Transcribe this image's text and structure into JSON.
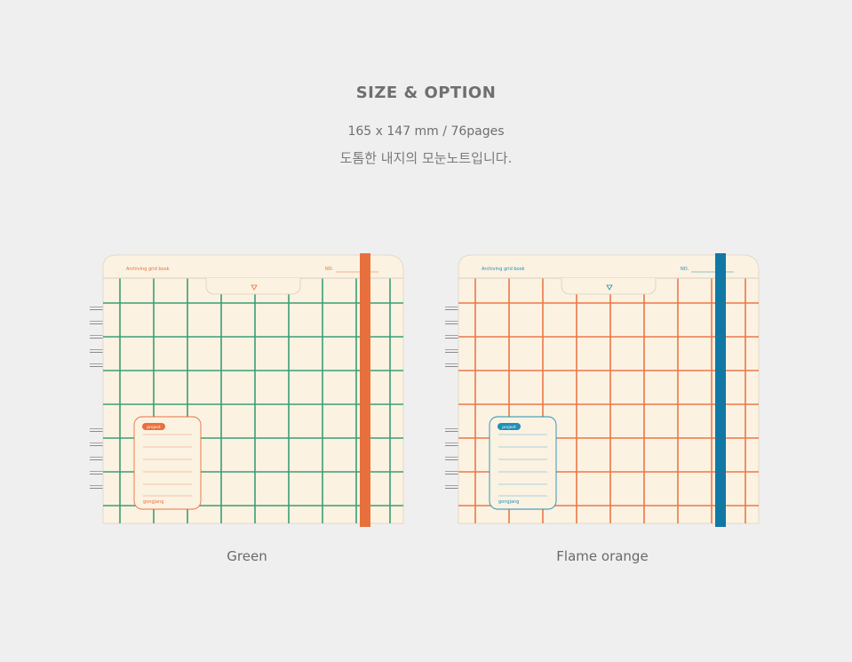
{
  "header": {
    "title": "SIZE & OPTION",
    "spec": "165 x 147 mm / 76pages",
    "description": "도톰한 내지의 모눈노트입니다."
  },
  "notebooks": [
    {
      "option_label": "Green",
      "cover_title": "Archiving grid book",
      "number_label": "NO.",
      "card_tag": "project",
      "card_brand": "gongjang",
      "colors": {
        "grid": "#3a9e74",
        "accent": "#e8703d",
        "band": "#e8703d",
        "card_line": "#f0b291",
        "paper": "#fbf2e2"
      }
    },
    {
      "option_label": "Flame orange",
      "cover_title": "Archiving grid book",
      "number_label": "NO.",
      "card_tag": "project",
      "card_brand": "gongjang",
      "colors": {
        "grid": "#ec7747",
        "accent": "#1e8fb8",
        "band": "#1177a4",
        "card_line": "#8cc6d8",
        "paper": "#fbf2e2"
      }
    }
  ]
}
